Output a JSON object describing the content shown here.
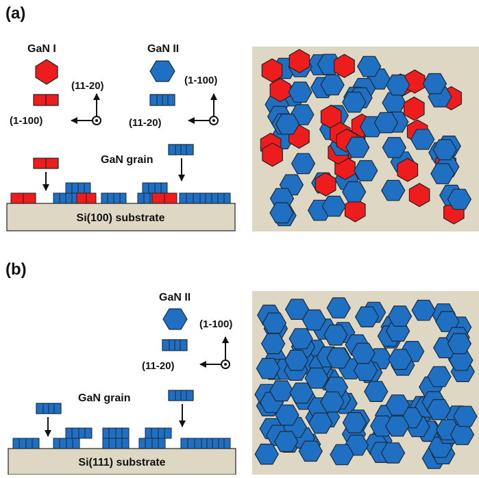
{
  "panel_a": {
    "label": "(a)",
    "species": [
      {
        "name": "GaN I",
        "color": "#ee1c1c",
        "dir_up": "(11-20)",
        "dir_left": "(1-100)"
      },
      {
        "name": "GaN II",
        "color": "#1f6fc2",
        "dir_up": "(1-100)",
        "dir_left": "(11-20)"
      }
    ],
    "grain_label": "GaN grain",
    "substrate_label": "Si(100) substrate"
  },
  "panel_b": {
    "label": "(b)",
    "species": [
      {
        "name": "GaN II",
        "color": "#1f6fc2",
        "dir_up": "(1-100)",
        "dir_left": "(11-20)"
      }
    ],
    "grain_label": "GaN grain",
    "substrate_label": "Si(111) substrate"
  },
  "colors": {
    "gan_i": "#ee1c1c",
    "gan_ii": "#1f6fc2",
    "substrate": "#ddd7c4",
    "micrograph_bg": "#ddd7c4"
  }
}
